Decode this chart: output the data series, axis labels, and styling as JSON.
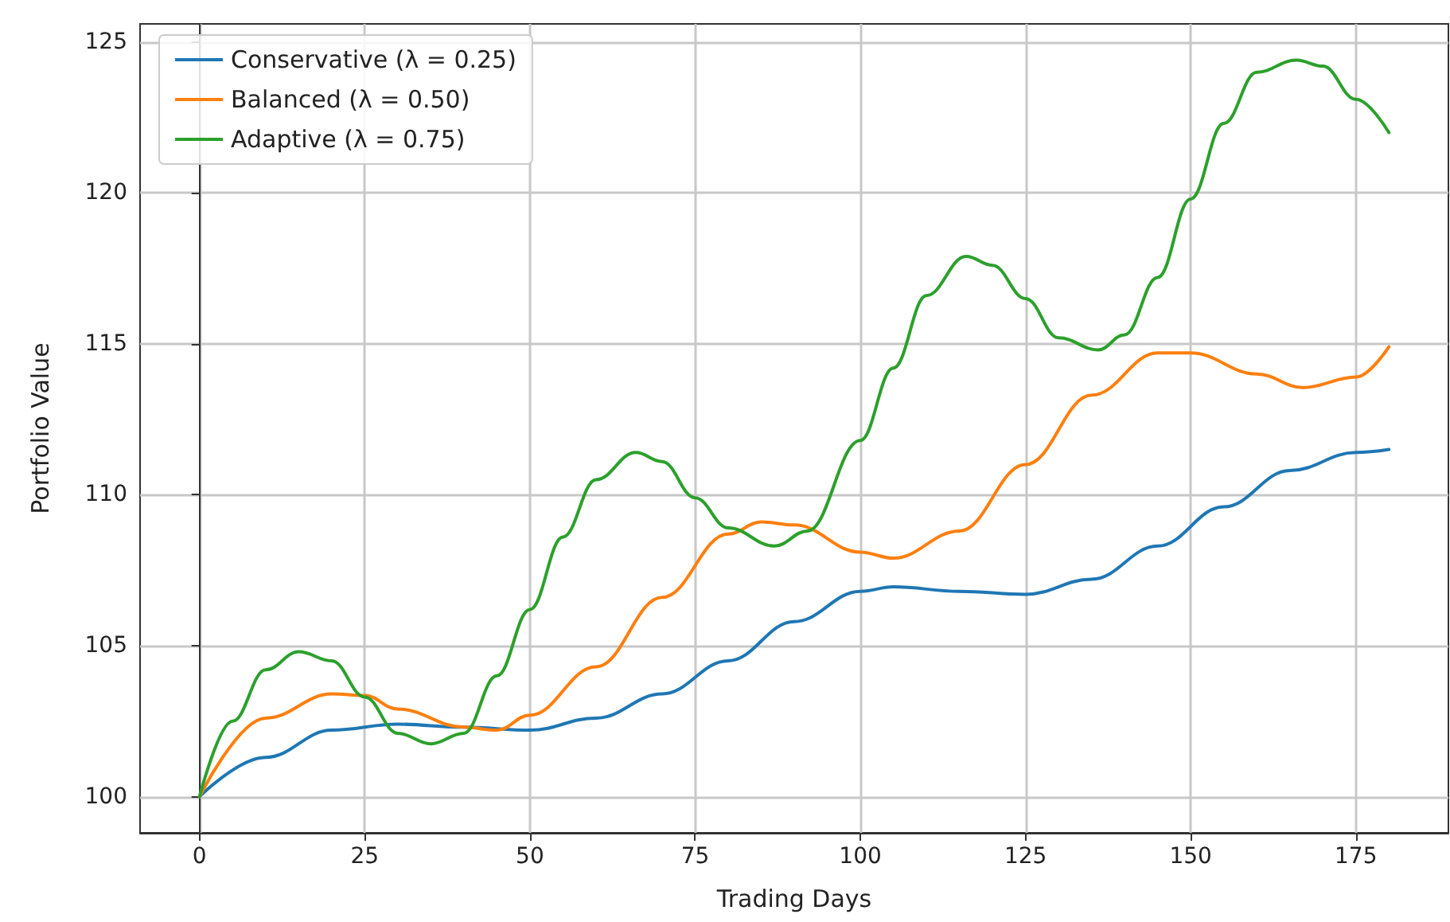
{
  "chart_data": {
    "type": "line",
    "xlabel": "Trading Days",
    "ylabel": "Portfolio Value",
    "xlim": [
      -9,
      189
    ],
    "xticks": [
      0,
      25,
      50,
      75,
      100,
      125,
      150,
      175
    ],
    "ylim": [
      98.8,
      125.6
    ],
    "yticks": [
      100,
      105,
      110,
      115,
      120,
      125
    ],
    "grid": true,
    "legend": "top left",
    "marker": "none",
    "line_style": "solid",
    "series": [
      {
        "name": "Conservative (λ = 0.25)",
        "color": "#1f77b4",
        "x": [
          0,
          10,
          20,
          30,
          40,
          50,
          60,
          70,
          80,
          90,
          100,
          105,
          115,
          125,
          135,
          145,
          155,
          165,
          175,
          180
        ],
        "values": [
          100,
          101.3,
          102.2,
          102.4,
          102.3,
          102.2,
          102.6,
          103.4,
          104.5,
          105.8,
          106.8,
          106.95,
          106.8,
          106.7,
          107.2,
          108.3,
          109.6,
          110.8,
          111.4,
          111.5
        ]
      },
      {
        "name": "Balanced (λ = 0.50)",
        "color": "#ff7f0e",
        "x": [
          0,
          10,
          20,
          25,
          30,
          40,
          45,
          50,
          60,
          70,
          80,
          85,
          90,
          100,
          105,
          115,
          125,
          135,
          145,
          150,
          160,
          167,
          175,
          180
        ],
        "values": [
          100,
          102.6,
          103.4,
          103.35,
          102.9,
          102.3,
          102.2,
          102.7,
          104.3,
          106.6,
          108.7,
          109.1,
          109,
          108.1,
          107.9,
          108.8,
          111,
          113.3,
          114.7,
          114.7,
          114,
          113.55,
          113.9,
          114.9
        ]
      },
      {
        "name": "Adaptive (λ = 0.75)",
        "color": "#2ca02c",
        "x": [
          0,
          5,
          10,
          15,
          20,
          25,
          30,
          35,
          40,
          45,
          50,
          55,
          60,
          66,
          70,
          75,
          80,
          87,
          92,
          100,
          105,
          110,
          116,
          120,
          125,
          130,
          136,
          140,
          145,
          150,
          155,
          160,
          166,
          170,
          175,
          180
        ],
        "values": [
          100,
          102.5,
          104.2,
          104.8,
          104.5,
          103.3,
          102.1,
          101.75,
          102.1,
          104,
          106.2,
          108.6,
          110.5,
          111.4,
          111.1,
          109.9,
          108.9,
          108.3,
          108.8,
          111.8,
          114.2,
          116.6,
          117.9,
          117.6,
          116.5,
          115.2,
          114.8,
          115.3,
          117.2,
          119.8,
          122.3,
          124,
          124.4,
          124.2,
          123.1,
          122
        ]
      }
    ]
  }
}
